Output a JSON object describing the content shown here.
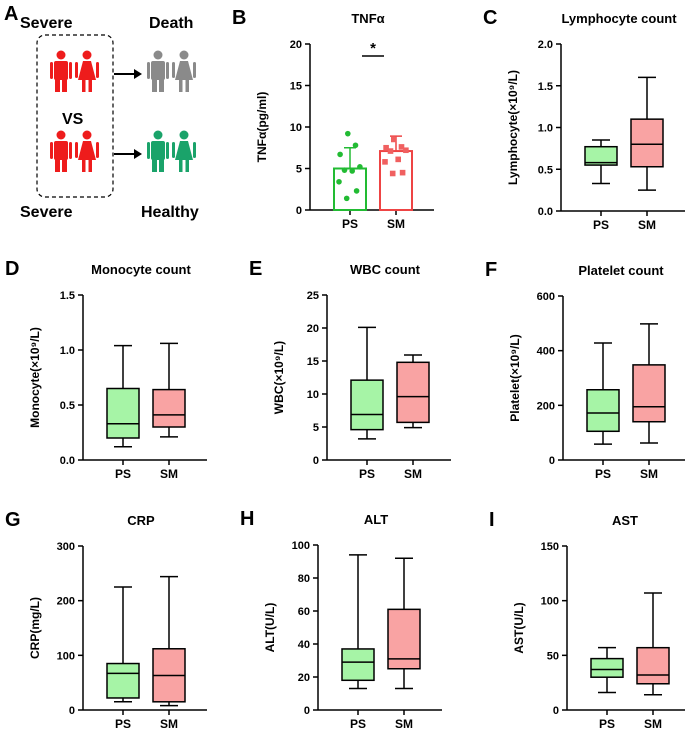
{
  "colors": {
    "green_fill": "#a6f4a6",
    "red_fill": "#f9a3a3",
    "green": "#22bb33",
    "red": "#ee4444",
    "red_dot": "#f06060",
    "red_person": "#ee1c1c",
    "grey_person": "#8a8a8a",
    "green_person": "#1aa36a"
  },
  "panel_a": {
    "letter": "A",
    "top_left": "Severe",
    "top_right": "Death",
    "vs": "VS",
    "bottom_left": "Severe",
    "bottom_right": "Healthy",
    "icons": [
      "male-person-icon",
      "female-person-icon",
      "arrow-right-icon"
    ]
  },
  "chart_data": [
    {
      "id": "B",
      "type": "bar",
      "letter": "B",
      "title": "TNFα",
      "ylabel": "TNFα(pg/ml)",
      "ylim": [
        0,
        20
      ],
      "yticks": [
        0,
        5,
        10,
        15,
        20
      ],
      "categories": [
        "PS",
        "SM"
      ],
      "means": [
        5.0,
        7.1
      ],
      "sd": [
        2.5,
        1.8
      ],
      "points": [
        [
          9.2,
          7.8,
          6.7,
          5.2,
          4.8,
          4.7,
          3.4,
          2.3,
          1.4
        ],
        [
          8.5,
          7.6,
          7.5,
          7.2,
          7.1,
          6.1,
          5.8,
          4.5,
          4.4
        ]
      ],
      "significance": "*"
    },
    {
      "id": "C",
      "type": "box",
      "letter": "C",
      "title": "Lymphocyte count",
      "ylabel": "Lymphocyte(×10⁹/L)",
      "ylim": [
        0,
        2
      ],
      "yticks": [
        "0.0",
        "0.5",
        "1.0",
        "1.5",
        "2.0"
      ],
      "categories": [
        "PS",
        "SM"
      ],
      "boxes": [
        {
          "min": 0.33,
          "q1": 0.55,
          "median": 0.58,
          "q3": 0.77,
          "max": 0.85
        },
        {
          "min": 0.25,
          "q1": 0.53,
          "median": 0.8,
          "q3": 1.1,
          "max": 1.6
        }
      ]
    },
    {
      "id": "D",
      "type": "box",
      "letter": "D",
      "title": "Monocyte count",
      "ylabel": "Monocyte(×10⁹/L)",
      "ylim": [
        0,
        1.5
      ],
      "yticks": [
        "0.0",
        "0.5",
        "1.0",
        "1.5"
      ],
      "categories": [
        "PS",
        "SM"
      ],
      "boxes": [
        {
          "min": 0.12,
          "q1": 0.2,
          "median": 0.33,
          "q3": 0.65,
          "max": 1.04
        },
        {
          "min": 0.21,
          "q1": 0.3,
          "median": 0.41,
          "q3": 0.64,
          "max": 1.06
        }
      ]
    },
    {
      "id": "E",
      "type": "box",
      "letter": "E",
      "title": "WBC count",
      "ylabel": "WBC(×10⁹/L)",
      "ylim": [
        0,
        25
      ],
      "yticks": [
        "0",
        "5",
        "10",
        "15",
        "20",
        "25"
      ],
      "categories": [
        "PS",
        "SM"
      ],
      "boxes": [
        {
          "min": 3.2,
          "q1": 4.6,
          "median": 6.9,
          "q3": 12.1,
          "max": 20.1
        },
        {
          "min": 4.9,
          "q1": 5.7,
          "median": 9.6,
          "q3": 14.8,
          "max": 15.9
        }
      ]
    },
    {
      "id": "F",
      "type": "box",
      "letter": "F",
      "title": "Platelet count",
      "ylabel": "Platelet(×10⁹/L)",
      "ylim": [
        0,
        600
      ],
      "yticks": [
        "0",
        "200",
        "400",
        "600"
      ],
      "categories": [
        "PS",
        "SM"
      ],
      "boxes": [
        {
          "min": 58,
          "q1": 105,
          "median": 172,
          "q3": 257,
          "max": 428
        },
        {
          "min": 62,
          "q1": 140,
          "median": 195,
          "q3": 348,
          "max": 498
        }
      ]
    },
    {
      "id": "G",
      "type": "box",
      "letter": "G",
      "title": "CRP",
      "ylabel": "CRP(mg/L)",
      "ylim": [
        0,
        300
      ],
      "yticks": [
        "0",
        "100",
        "200",
        "300"
      ],
      "categories": [
        "PS",
        "SM"
      ],
      "boxes": [
        {
          "min": 15,
          "q1": 22,
          "median": 67,
          "q3": 85,
          "max": 225
        },
        {
          "min": 8,
          "q1": 15,
          "median": 63,
          "q3": 112,
          "max": 244
        }
      ]
    },
    {
      "id": "H",
      "type": "box",
      "letter": "H",
      "title": "ALT",
      "ylabel": "ALT(U/L)",
      "ylim": [
        0,
        100
      ],
      "yticks": [
        "0",
        "20",
        "40",
        "60",
        "80",
        "100"
      ],
      "categories": [
        "PS",
        "SM"
      ],
      "boxes": [
        {
          "min": 13,
          "q1": 18,
          "median": 29,
          "q3": 37,
          "max": 94
        },
        {
          "min": 13,
          "q1": 25,
          "median": 31,
          "q3": 61,
          "max": 92
        }
      ]
    },
    {
      "id": "I",
      "type": "box",
      "letter": "I",
      "title": "AST",
      "ylabel": "AST(U/L)",
      "ylim": [
        0,
        150
      ],
      "yticks": [
        "0",
        "50",
        "100",
        "150"
      ],
      "categories": [
        "PS",
        "SM"
      ],
      "boxes": [
        {
          "min": 16,
          "q1": 30,
          "median": 37,
          "q3": 47,
          "max": 57
        },
        {
          "min": 14,
          "q1": 24,
          "median": 32,
          "q3": 57,
          "max": 107
        }
      ]
    }
  ]
}
